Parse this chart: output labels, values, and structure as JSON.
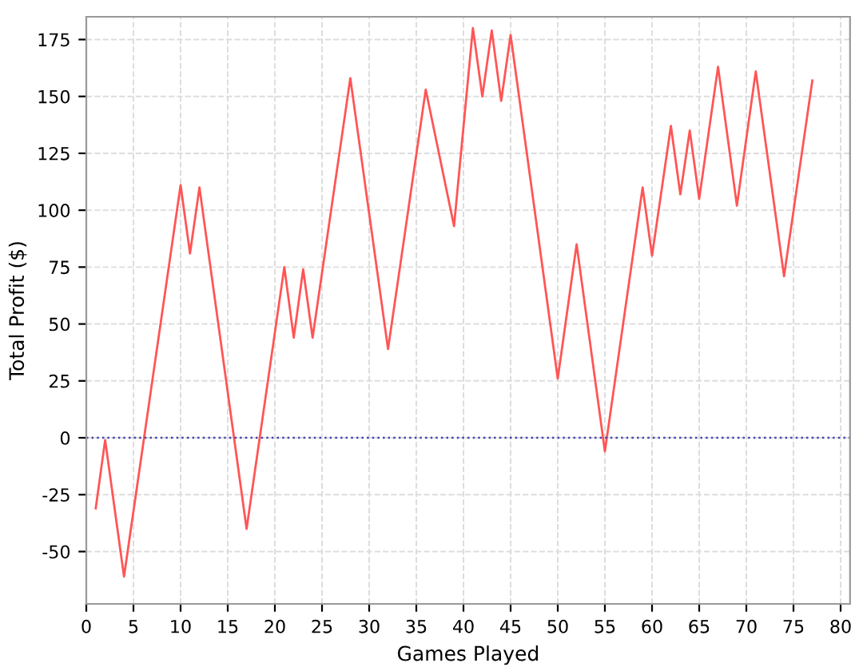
{
  "chart_data": {
    "type": "line",
    "xlabel": "Games Played",
    "ylabel": "Total Profit ($)",
    "series": [
      {
        "color": "#ff5555",
        "x": [
          1,
          2,
          4,
          10,
          11,
          12,
          17,
          21,
          22,
          23,
          24,
          28,
          32,
          36,
          39,
          41,
          42,
          43,
          44,
          45,
          50,
          52,
          55,
          59,
          60,
          62,
          63,
          64,
          65,
          67,
          69,
          71,
          74,
          77
        ],
        "values": [
          -31,
          -1,
          -61,
          111,
          81,
          110,
          -40,
          75,
          44,
          74,
          44,
          158,
          39,
          153,
          93,
          180,
          150,
          179,
          148,
          177,
          26,
          85,
          -6,
          110,
          80,
          137,
          107,
          135,
          105,
          163,
          102,
          161,
          71,
          157
        ]
      }
    ],
    "xlim": [
      0,
      81
    ],
    "xticks": [
      0,
      5,
      10,
      15,
      20,
      25,
      30,
      35,
      40,
      45,
      50,
      55,
      60,
      65,
      70,
      75,
      80
    ],
    "ylim": [
      -73,
      185
    ],
    "yticks": [
      -50,
      -25,
      0,
      25,
      50,
      75,
      100,
      125,
      150,
      175
    ],
    "ref_lines": [
      {
        "axis": "y",
        "value": 0,
        "color": "#4444aa",
        "line_style": "dotted"
      }
    ],
    "grid": true,
    "legend": false,
    "marker": "none",
    "line_style": "solid"
  }
}
